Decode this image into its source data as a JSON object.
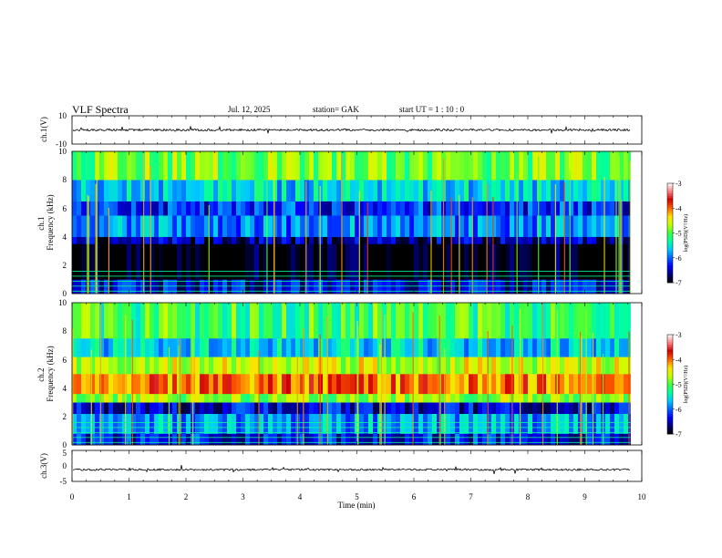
{
  "header": {
    "title": "VLF  Spectra",
    "date": "Jul.  12,  2025",
    "station": "station= GAK",
    "start_ut": "start  UT  =   1  : 10 : 0"
  },
  "colors": {
    "waveform": "#000000",
    "frame": "#000000",
    "colormap": [
      "#000000",
      "#00007a",
      "#0000ff",
      "#0064ff",
      "#00c8ff",
      "#00ffa0",
      "#40ff40",
      "#c8ff00",
      "#ffe000",
      "#ff6000",
      "#d00000",
      "#ff8080",
      "#ffffff"
    ]
  },
  "chart_data": [
    {
      "type": "line",
      "name": "ch1-waveform",
      "ylabel": "ch.1(V)",
      "ylim": [
        -10,
        10
      ],
      "y_ticks": [
        "10",
        "-10"
      ],
      "x_range_min": [
        0,
        9.8
      ],
      "baseline_v": 0
    },
    {
      "type": "heatmap",
      "name": "ch1-spectrogram",
      "ylabel": "ch.1\nFrequency  (kHz)",
      "ylabel_lines": [
        "ch.1",
        "Frequency  (kHz)"
      ],
      "ylim": [
        0,
        10
      ],
      "y_ticks": [
        "0",
        "2",
        "4",
        "6",
        "8",
        "10"
      ],
      "x_range_min": [
        0,
        9.8
      ],
      "level_unit": "log(PSD)(V^2/Hz)",
      "bands_khz": [
        {
          "f": [
            0,
            1.0
          ],
          "level": -6.4
        },
        {
          "f": [
            1.0,
            3.5
          ],
          "level": -7.0
        },
        {
          "f": [
            3.5,
            4.0
          ],
          "level": -6.6
        },
        {
          "f": [
            4.0,
            5.5
          ],
          "level": -5.9
        },
        {
          "f": [
            5.5,
            6.5
          ],
          "level": -6.2
        },
        {
          "f": [
            6.5,
            8.0
          ],
          "level": -5.6
        },
        {
          "f": [
            8.0,
            10.0
          ],
          "level": -4.9
        }
      ],
      "colorbar": {
        "label": "log(PSD)(V²/Hz)",
        "range": [
          -7,
          -3
        ],
        "ticks": [
          "-3",
          "-4",
          "-5",
          "-6",
          "-7"
        ]
      }
    },
    {
      "type": "heatmap",
      "name": "ch2-spectrogram",
      "ylabel": "ch.2\nFrequency  (kHz)",
      "ylabel_lines": [
        "ch.2",
        "Frequency  (kHz)"
      ],
      "ylim": [
        0,
        10
      ],
      "y_ticks": [
        "0",
        "2",
        "4",
        "6",
        "8",
        "10"
      ],
      "x_range_min": [
        0,
        9.8
      ],
      "level_unit": "log(PSD)(V^2/Hz)",
      "bands_khz": [
        {
          "f": [
            0,
            0.8
          ],
          "level": -6.3
        },
        {
          "f": [
            0.8,
            2.2
          ],
          "level": -5.8
        },
        {
          "f": [
            2.2,
            3.0
          ],
          "level": -6.4
        },
        {
          "f": [
            3.0,
            3.6
          ],
          "level": -4.8
        },
        {
          "f": [
            3.6,
            5.0
          ],
          "level": -4.0
        },
        {
          "f": [
            5.0,
            6.2
          ],
          "level": -4.6
        },
        {
          "f": [
            6.2,
            7.5
          ],
          "level": -5.6
        },
        {
          "f": [
            7.5,
            10.0
          ],
          "level": -5.1
        }
      ],
      "colorbar": {
        "label": "log(PSD)(V²/Hz)",
        "range": [
          -7,
          -3
        ],
        "ticks": [
          "-3",
          "-4",
          "-5",
          "-6",
          "-7"
        ]
      }
    },
    {
      "type": "line",
      "name": "ch3-waveform",
      "ylabel": "ch.3(V)",
      "ylim": [
        -5,
        5
      ],
      "y_ticks": [
        "5",
        "0",
        "-5"
      ],
      "x_range_min": [
        0,
        9.8
      ],
      "baseline_v": -1.2
    }
  ],
  "x_axis": {
    "label": "Time  (min)",
    "ticks": [
      "0",
      "1",
      "2",
      "3",
      "4",
      "5",
      "6",
      "7",
      "8",
      "9",
      "10"
    ],
    "xlim": [
      0,
      10
    ]
  }
}
